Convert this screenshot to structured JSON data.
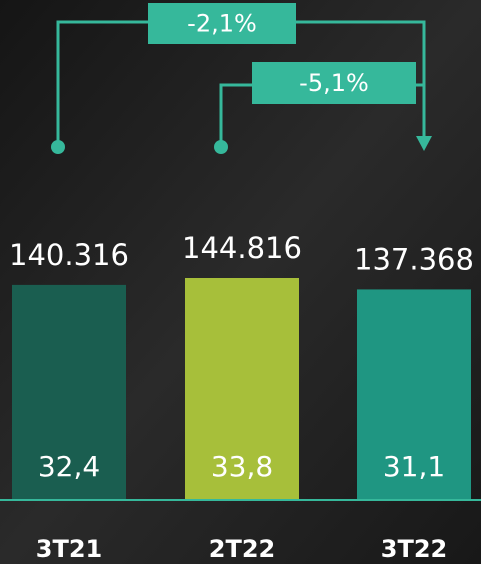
{
  "chart_data": {
    "type": "bar",
    "categories": [
      "3T21",
      "2T22",
      "3T22"
    ],
    "values": [
      140316,
      144816,
      137368
    ],
    "value_labels": [
      "140.316",
      "144.816",
      "137.368"
    ],
    "colors": [
      "#1a5e50",
      "#a7bf3a",
      "#1f9682"
    ],
    "secondary_values": [
      32.4,
      33.8,
      31.1
    ],
    "secondary_value_labels": [
      "32,4",
      "33,8",
      "31,1"
    ],
    "annotations": [
      "-2,1%",
      "-5,1%"
    ],
    "annotation_color": "#36b89b"
  }
}
